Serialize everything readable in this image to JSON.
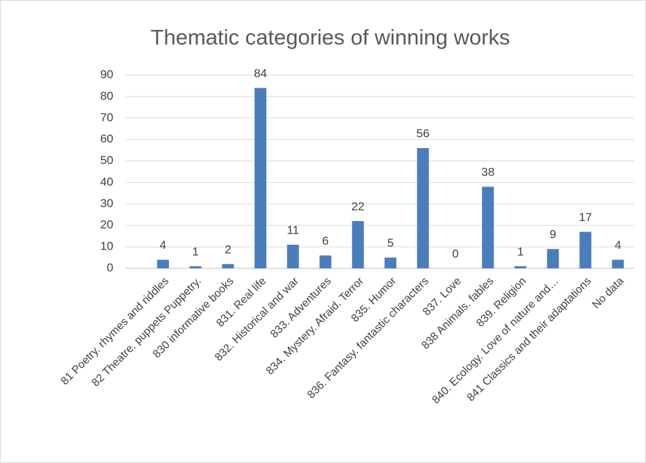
{
  "chart_data": {
    "type": "bar",
    "title": "Thematic categories of winning works",
    "categories": [
      "81 Poetry. rhymes and riddles",
      "82 Theatre. puppets Puppetry.",
      "830 informative books",
      "831. Real life",
      "832. Historical and war",
      "833. Adventures",
      "834. Mystery. Afraid. Terror",
      "835. Humor",
      "836. Fantasy. fantastic characters",
      "837. Love",
      "838 Animals. fables",
      "839. Religion",
      "840. Ecology. Love of nature and…",
      "841 Classics and their adaptations",
      "No data"
    ],
    "values": [
      4,
      1,
      2,
      84,
      11,
      6,
      22,
      5,
      56,
      0,
      38,
      1,
      9,
      17,
      4
    ],
    "color": "#4a7ebb",
    "ylim": [
      0,
      90
    ],
    "yticks": [
      0,
      10,
      20,
      30,
      40,
      50,
      60,
      70,
      80,
      90
    ],
    "grid": true,
    "data_labels": true
  }
}
